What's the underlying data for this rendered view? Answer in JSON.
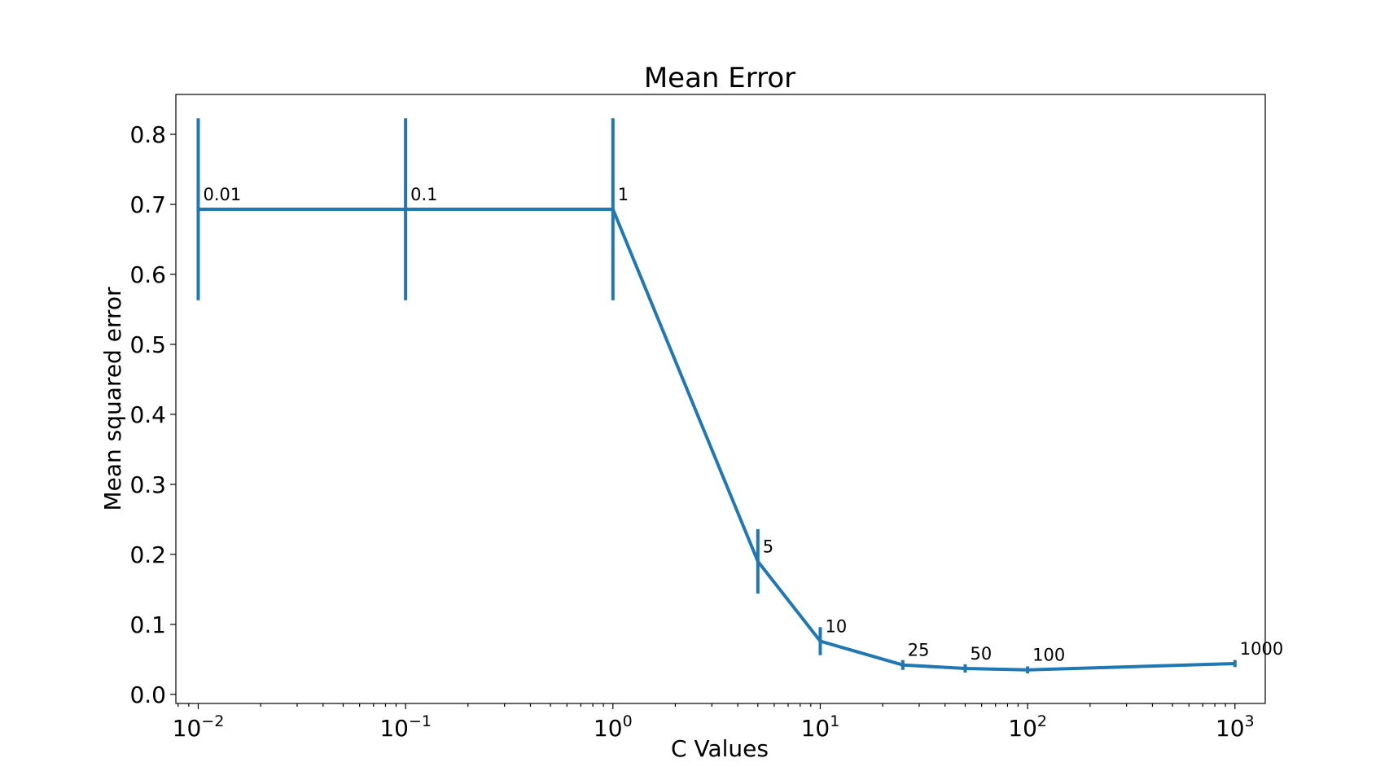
{
  "chart_data": {
    "type": "line",
    "title": "Mean Error",
    "xlabel": "C Values",
    "ylabel": "Mean squared error",
    "xscale": "log",
    "xlim": [
      0.0078,
      1400
    ],
    "ylim": [
      -0.013,
      0.857
    ],
    "grid": false,
    "color": "#1f77b4",
    "x_ticks": [
      {
        "value": 0.01,
        "base": "10",
        "exp": "−2"
      },
      {
        "value": 0.1,
        "base": "10",
        "exp": "−1"
      },
      {
        "value": 1,
        "base": "10",
        "exp": "0"
      },
      {
        "value": 10,
        "base": "10",
        "exp": "1"
      },
      {
        "value": 100,
        "base": "10",
        "exp": "2"
      },
      {
        "value": 1000,
        "base": "10",
        "exp": "3"
      }
    ],
    "y_ticks": [
      {
        "value": 0.0,
        "label": "0.0"
      },
      {
        "value": 0.1,
        "label": "0.1"
      },
      {
        "value": 0.2,
        "label": "0.2"
      },
      {
        "value": 0.3,
        "label": "0.3"
      },
      {
        "value": 0.4,
        "label": "0.4"
      },
      {
        "value": 0.5,
        "label": "0.5"
      },
      {
        "value": 0.6,
        "label": "0.6"
      },
      {
        "value": 0.7,
        "label": "0.7"
      },
      {
        "value": 0.8,
        "label": "0.8"
      }
    ],
    "points": [
      {
        "x": 0.01,
        "y": 0.693,
        "err": 0.13,
        "label": "0.01"
      },
      {
        "x": 0.1,
        "y": 0.693,
        "err": 0.13,
        "label": "0.1"
      },
      {
        "x": 1,
        "y": 0.693,
        "err": 0.13,
        "label": "1"
      },
      {
        "x": 5,
        "y": 0.19,
        "err": 0.046,
        "label": "5"
      },
      {
        "x": 10,
        "y": 0.076,
        "err": 0.02,
        "label": "10"
      },
      {
        "x": 25,
        "y": 0.042,
        "err": 0.007,
        "label": "25"
      },
      {
        "x": 50,
        "y": 0.037,
        "err": 0.006,
        "label": "50"
      },
      {
        "x": 100,
        "y": 0.035,
        "err": 0.005,
        "label": "100"
      },
      {
        "x": 1000,
        "y": 0.044,
        "err": 0.005,
        "label": "1000"
      }
    ]
  }
}
